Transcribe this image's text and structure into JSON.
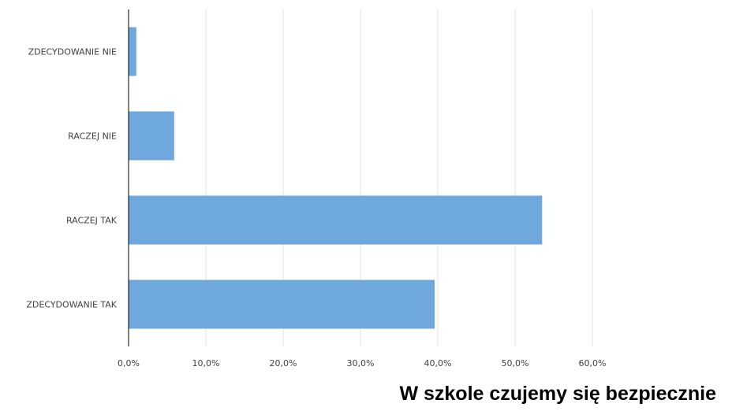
{
  "chart_data": {
    "type": "bar",
    "orientation": "horizontal",
    "title": "W szkole czujemy się bezpiecznie",
    "categories": [
      "ZDECYDOWANIE NIE",
      "RACZEJ NIE",
      "RACZEJ TAK",
      "ZDECYDOWANIE TAK"
    ],
    "values": [
      1.0,
      5.9,
      53.5,
      39.6
    ],
    "unit": "%",
    "xlim": [
      0,
      60
    ],
    "x_ticks": [
      0,
      10,
      20,
      30,
      40,
      50,
      60
    ],
    "x_tick_labels": [
      "0,0%",
      "10,0%",
      "20,0%",
      "30,0%",
      "40,0%",
      "50,0%",
      "60,0%"
    ],
    "grid": true,
    "legend": "none",
    "colors": {
      "bar": "#6fa8dc",
      "grid": "#e2e2e2",
      "axis": "#000000"
    }
  }
}
